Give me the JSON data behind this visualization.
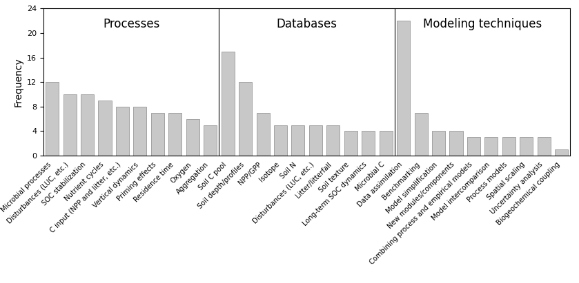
{
  "sections": [
    {
      "name": "Processes",
      "bars": [
        {
          "label": "Microbial processes",
          "value": 12
        },
        {
          "label": "Disturbances (LUC, etc.)",
          "value": 10
        },
        {
          "label": "SOC stabilization",
          "value": 10
        },
        {
          "label": "Nutrient cycles",
          "value": 9
        },
        {
          "label": "C input (NPP and litter, etc.)",
          "value": 8
        },
        {
          "label": "Vertical dynamics",
          "value": 8
        },
        {
          "label": "Priming effects",
          "value": 7
        },
        {
          "label": "Residence time",
          "value": 7
        },
        {
          "label": "Oxygen",
          "value": 6
        },
        {
          "label": "Aggregation",
          "value": 5
        }
      ]
    },
    {
      "name": "Databases",
      "bars": [
        {
          "label": "Soil C pool",
          "value": 17
        },
        {
          "label": "Soil depth/profiles",
          "value": 12
        },
        {
          "label": "NPP/GPP",
          "value": 7
        },
        {
          "label": "Isotope",
          "value": 5
        },
        {
          "label": "Soil N",
          "value": 5
        },
        {
          "label": "Disturbances (LUC, etc.)",
          "value": 5
        },
        {
          "label": "Litter/litterfall",
          "value": 5
        },
        {
          "label": "Soil texture",
          "value": 4
        },
        {
          "label": "Long-term SOC dynamics",
          "value": 4
        },
        {
          "label": "Microbial C",
          "value": 4
        }
      ]
    },
    {
      "name": "Modeling techniques",
      "bars": [
        {
          "label": "Data assimilation",
          "value": 22
        },
        {
          "label": "Benchmarking",
          "value": 7
        },
        {
          "label": "Model simplification",
          "value": 4
        },
        {
          "label": "New modules/components",
          "value": 4
        },
        {
          "label": "Combining process and empirical models",
          "value": 3
        },
        {
          "label": "Model intercomparison",
          "value": 3
        },
        {
          "label": "Process models",
          "value": 3
        },
        {
          "label": "Spatial scaling",
          "value": 3
        },
        {
          "label": "Uncertainty analysis",
          "value": 3
        },
        {
          "label": "Biogeochemical coupling",
          "value": 1
        }
      ]
    }
  ],
  "bar_color": "#c8c8c8",
  "bar_edgecolor": "#888888",
  "ylabel": "Frequency",
  "ylim": [
    0,
    24
  ],
  "yticks": [
    0,
    4,
    8,
    12,
    16,
    20,
    24
  ],
  "background_color": "#ffffff",
  "label_fontsize": 7.2,
  "section_label_fontsize": 12,
  "ylabel_fontsize": 10,
  "tick_fontsize": 8
}
